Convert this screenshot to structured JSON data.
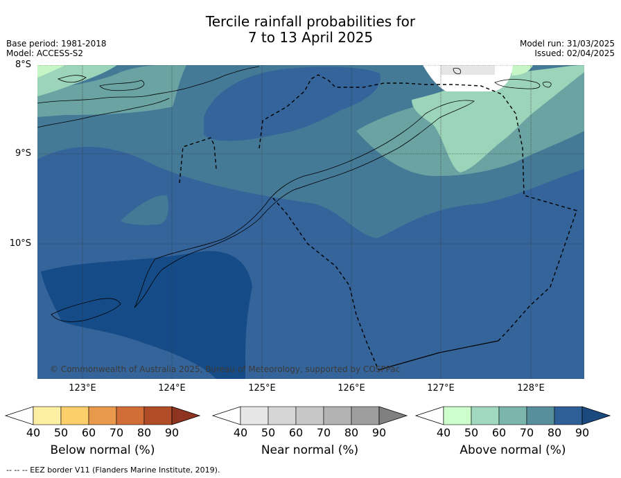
{
  "title_line1": "Tercile rainfall probabilities for",
  "title_line2": "7 to 13 April 2025",
  "meta": {
    "base_period": "Base period: 1981-2018",
    "model": "Model: ACCESS-S2",
    "model_run": "Model run: 31/03/2025",
    "issued": "Issued: 02/04/2025"
  },
  "map": {
    "lat_labels": [
      "8°S",
      "9°S",
      "10°S"
    ],
    "lon_labels": [
      "123°E",
      "124°E",
      "125°E",
      "126°E",
      "127°E",
      "128°E"
    ],
    "copyright": "© Commonwealth of Australia 2025, Bureau of Meteorology, supported by COSPPac"
  },
  "colorbars": [
    {
      "title": "Below normal (%)",
      "ticks": [
        "40",
        "50",
        "60",
        "70",
        "80",
        "90"
      ],
      "colors": [
        "#ffffff",
        "#fdf0a4",
        "#fccf6b",
        "#e8994c",
        "#d16d36",
        "#b04d28",
        "#8e3420"
      ]
    },
    {
      "title": "Near normal (%)",
      "ticks": [
        "40",
        "50",
        "60",
        "70",
        "80",
        "90"
      ],
      "colors": [
        "#ffffff",
        "#e6e6e6",
        "#d6d6d6",
        "#c7c7c7",
        "#b3b3b3",
        "#9e9e9e",
        "#808080"
      ]
    },
    {
      "title": "Above normal (%)",
      "ticks": [
        "40",
        "50",
        "60",
        "70",
        "80",
        "90"
      ],
      "colors": [
        "#ffffff",
        "#ccffcc",
        "#a1d9c0",
        "#7bb5ab",
        "#578f9c",
        "#2f5f97",
        "#1a4a80"
      ]
    }
  ],
  "footnote": "--  --  -- EEZ border V11 (Flanders Marine Institute, 2019)."
}
